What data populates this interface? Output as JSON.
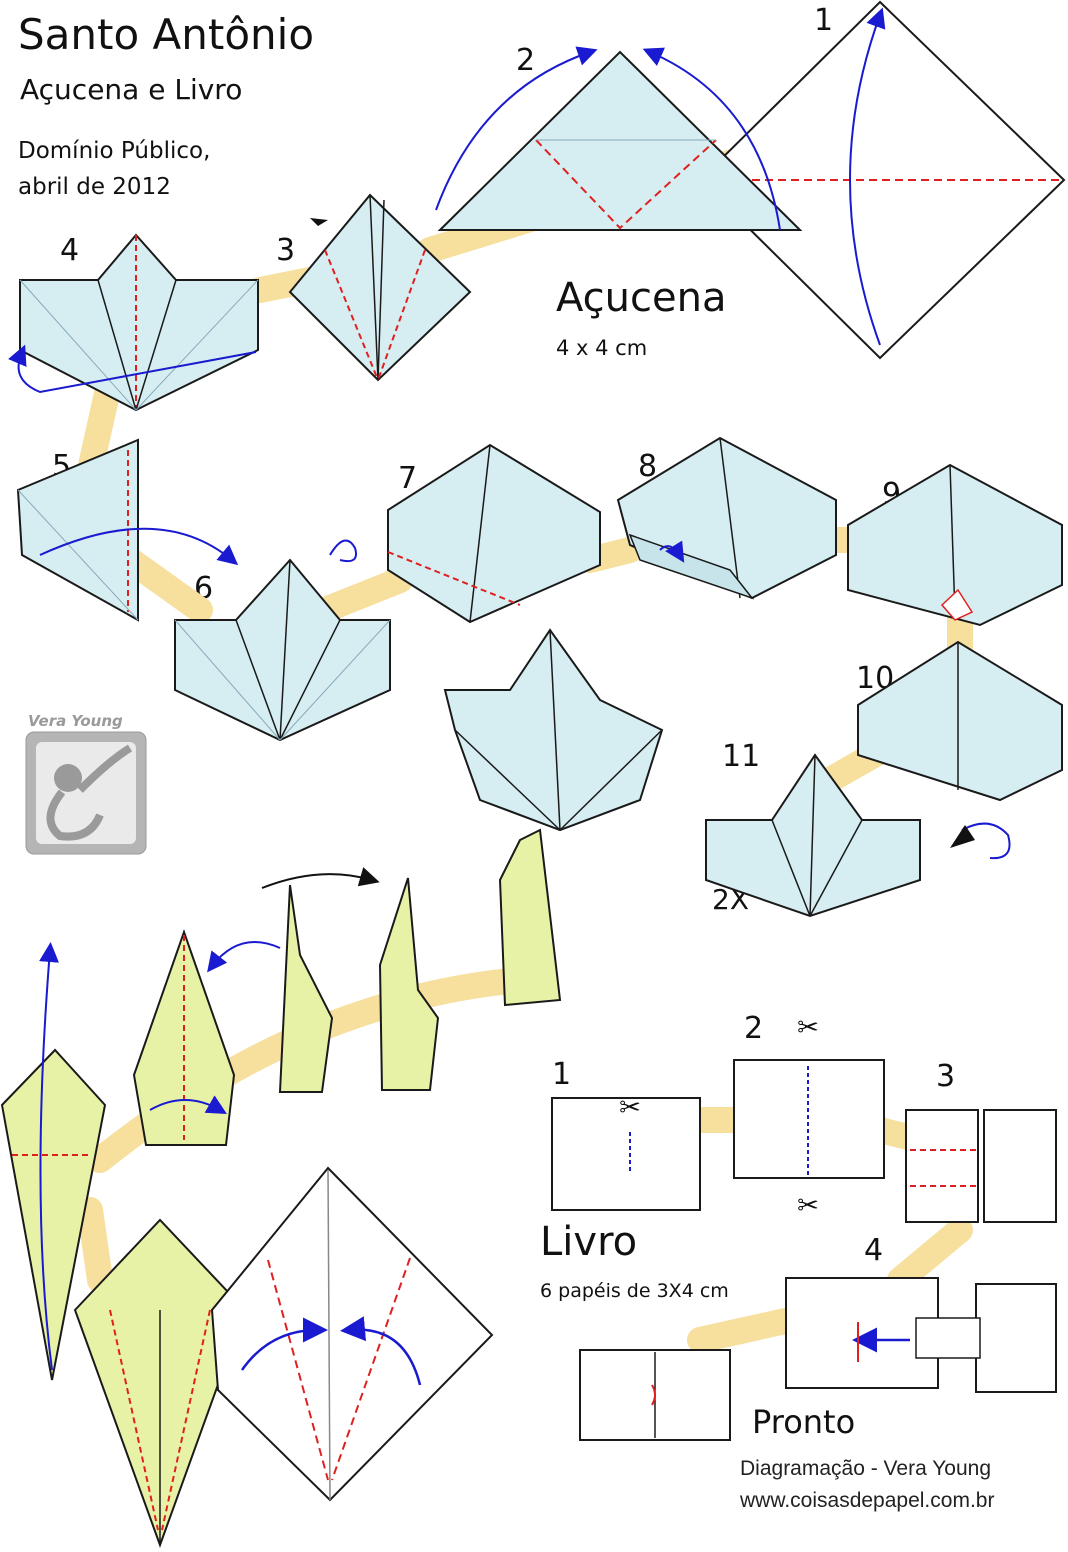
{
  "header": {
    "title": "Santo Antônio",
    "subtitle": "Açucena e Livro",
    "credit_line1": "Domínio Público,",
    "credit_line2": "abril de 2012"
  },
  "acucena": {
    "name": "Açucena",
    "size": "4 x 4 cm",
    "steps": [
      "1",
      "2",
      "3",
      "4",
      "5",
      "6",
      "7",
      "8",
      "9",
      "10",
      "11"
    ],
    "repeat_note": "2X"
  },
  "livro": {
    "name": "Livro",
    "size": "6 papéis de 3X4 cm",
    "steps": [
      "1",
      "2",
      "3",
      "4"
    ],
    "done": "Pronto"
  },
  "logo": {
    "text": "Vera Young",
    "icon": "monkey-icon"
  },
  "footer": {
    "layout_credit": "Diagramação - Vera Young",
    "website": "www.coisasdepapel.com.br"
  },
  "colors": {
    "paper_blue": "#d6eef2",
    "leaf_green": "#e8f2a6",
    "path_yellow": "#f7df9e",
    "fold_red": "#e02020",
    "arrow_blue": "#1a1ad0",
    "outline": "#1a1a1a"
  }
}
